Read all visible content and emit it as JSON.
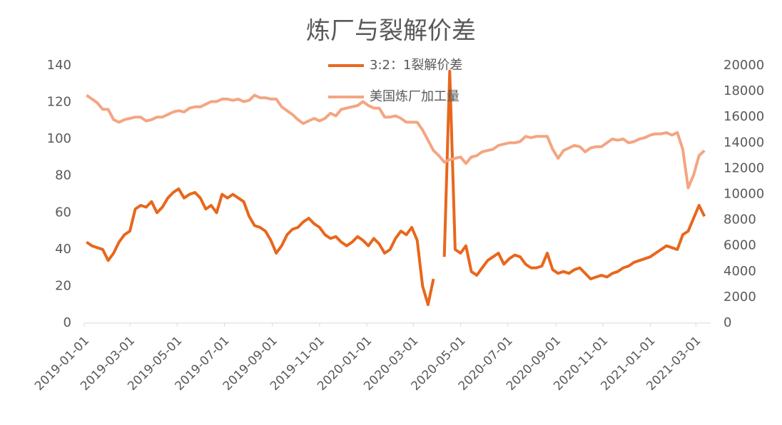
{
  "chart_data": {
    "type": "line",
    "title": "炼厂与裂解价差",
    "x": [
      "2019-01-04",
      "2019-01-11",
      "2019-01-18",
      "2019-01-25",
      "2019-02-01",
      "2019-02-08",
      "2019-02-15",
      "2019-02-22",
      "2019-03-01",
      "2019-03-08",
      "2019-03-15",
      "2019-03-22",
      "2019-03-29",
      "2019-04-05",
      "2019-04-12",
      "2019-04-19",
      "2019-04-26",
      "2019-05-03",
      "2019-05-10",
      "2019-05-17",
      "2019-05-24",
      "2019-05-31",
      "2019-06-07",
      "2019-06-14",
      "2019-06-21",
      "2019-06-28",
      "2019-07-05",
      "2019-07-12",
      "2019-07-19",
      "2019-07-26",
      "2019-08-02",
      "2019-08-09",
      "2019-08-16",
      "2019-08-23",
      "2019-08-30",
      "2019-09-06",
      "2019-09-13",
      "2019-09-20",
      "2019-09-27",
      "2019-10-04",
      "2019-10-11",
      "2019-10-18",
      "2019-10-25",
      "2019-11-01",
      "2019-11-08",
      "2019-11-15",
      "2019-11-22",
      "2019-11-29",
      "2019-12-06",
      "2019-12-13",
      "2019-12-20",
      "2019-12-27",
      "2020-01-03",
      "2020-01-10",
      "2020-01-17",
      "2020-01-24",
      "2020-01-31",
      "2020-02-07",
      "2020-02-14",
      "2020-02-21",
      "2020-02-28",
      "2020-03-06",
      "2020-03-13",
      "2020-03-20",
      "2020-03-27",
      "2020-04-03",
      "2020-04-10",
      "2020-04-17",
      "2020-04-24",
      "2020-05-01",
      "2020-05-08",
      "2020-05-15",
      "2020-05-22",
      "2020-05-29",
      "2020-06-05",
      "2020-06-12",
      "2020-06-19",
      "2020-06-26",
      "2020-07-03",
      "2020-07-10",
      "2020-07-17",
      "2020-07-24",
      "2020-07-31",
      "2020-08-07",
      "2020-08-14",
      "2020-08-21",
      "2020-08-28",
      "2020-09-04",
      "2020-09-11",
      "2020-09-18",
      "2020-09-25",
      "2020-10-02",
      "2020-10-09",
      "2020-10-16",
      "2020-10-23",
      "2020-10-30",
      "2020-11-06",
      "2020-11-13",
      "2020-11-20",
      "2020-11-27",
      "2020-12-04",
      "2020-12-11",
      "2020-12-18",
      "2020-12-25",
      "2021-01-01",
      "2021-01-08",
      "2021-01-15",
      "2021-01-22",
      "2021-01-29",
      "2021-02-05",
      "2021-02-12",
      "2021-02-19",
      "2021-02-26",
      "2021-03-05",
      "2021-03-12"
    ],
    "series": [
      {
        "name": "3:2：1裂解价差",
        "color": "#e8671c",
        "width": 4,
        "values": [
          44,
          42,
          41,
          40,
          34,
          38,
          44,
          48,
          50,
          62,
          64,
          63,
          66,
          60,
          63,
          68,
          71,
          73,
          68,
          70,
          71,
          68,
          62,
          64,
          60,
          70,
          68,
          70,
          68,
          66,
          58,
          53,
          52,
          50,
          45,
          38,
          42,
          48,
          51,
          52,
          55,
          57,
          54,
          52,
          48,
          46,
          47,
          44,
          42,
          44,
          47,
          45,
          42,
          46,
          43,
          38,
          40,
          46,
          50,
          48,
          52,
          45,
          20,
          10,
          24,
          null,
          36,
          137,
          40,
          38,
          42,
          28,
          26,
          30,
          34,
          36,
          38,
          32,
          35,
          37,
          36,
          32,
          30,
          30,
          31,
          38,
          29,
          27,
          28,
          27,
          29,
          30,
          27,
          24,
          25,
          26,
          25,
          27,
          28,
          30,
          31,
          33,
          34,
          35,
          36,
          38,
          40,
          42,
          41,
          40,
          48,
          50,
          57,
          64,
          58
        ]
      },
      {
        "name": "美国炼厂加工量",
        "color": "#f4a582",
        "width": 4,
        "axis": "y2",
        "values": [
          17700,
          17400,
          17100,
          16600,
          16600,
          15800,
          15600,
          15800,
          15900,
          16000,
          16000,
          15700,
          15800,
          16000,
          16000,
          16200,
          16400,
          16500,
          16400,
          16700,
          16800,
          16800,
          17000,
          17200,
          17200,
          17400,
          17400,
          17300,
          17400,
          17200,
          17300,
          17700,
          17500,
          17500,
          17400,
          17400,
          16800,
          16500,
          16200,
          15800,
          15500,
          15700,
          15900,
          15700,
          15900,
          16300,
          16100,
          16600,
          16700,
          16800,
          16900,
          17200,
          16900,
          16700,
          16700,
          16000,
          16000,
          16100,
          15900,
          15600,
          15600,
          15600,
          15000,
          14200,
          13400,
          13000,
          12500,
          12700,
          12800,
          12900,
          12400,
          12900,
          13000,
          13300,
          13400,
          13500,
          13800,
          13900,
          14000,
          14000,
          14100,
          14500,
          14400,
          14500,
          14500,
          14500,
          13500,
          12800,
          13400,
          13600,
          13800,
          13700,
          13300,
          13600,
          13700,
          13700,
          14000,
          14300,
          14200,
          14300,
          14000,
          14100,
          14300,
          14400,
          14600,
          14700,
          14700,
          14800,
          14600,
          14800,
          13500,
          10500,
          11500,
          13000,
          13400
        ]
      }
    ],
    "xlim": [
      "2019-01-01",
      "2021-03-20"
    ],
    "xticks": [
      "2019-01-01",
      "2019-03-01",
      "2019-05-01",
      "2019-07-01",
      "2019-09-01",
      "2019-11-01",
      "2020-01-01",
      "2020-03-01",
      "2020-05-01",
      "2020-07-01",
      "2020-09-01",
      "2020-11-01",
      "2021-01-01",
      "2021-03-01"
    ],
    "ylim": [
      0,
      140
    ],
    "yticks": [
      0,
      20,
      40,
      60,
      80,
      100,
      120,
      140
    ],
    "y2lim": [
      0,
      20000
    ],
    "y2ticks": [
      0,
      2000,
      4000,
      6000,
      8000,
      10000,
      12000,
      14000,
      16000,
      18000,
      20000
    ],
    "grid": false,
    "legend": "top"
  }
}
